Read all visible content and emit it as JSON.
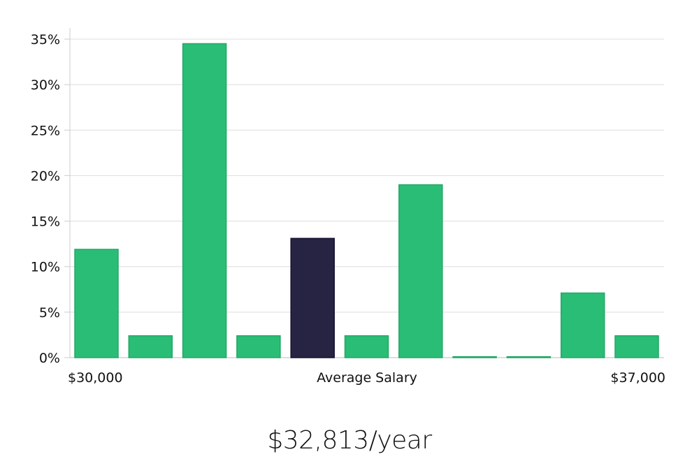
{
  "chart_data": {
    "type": "bar",
    "title": "",
    "xlabel": "Average Salary",
    "ylabel": "",
    "x_range_labels": [
      "$30,000",
      "$37,000"
    ],
    "ylim": [
      0,
      35
    ],
    "yticks": [
      0,
      5,
      10,
      15,
      20,
      25,
      30,
      35
    ],
    "ytick_labels": [
      "0%",
      "5%",
      "10%",
      "15%",
      "20%",
      "25%",
      "30%",
      "35%"
    ],
    "values": [
      11.9,
      2.4,
      34.5,
      2.4,
      13.1,
      2.4,
      19.0,
      0.1,
      0.1,
      7.1,
      2.4
    ],
    "highlight_index": 4,
    "grid": true,
    "colors": {
      "bar": "#2abd76",
      "highlight": "#272343",
      "grid": "#dddddd",
      "axis": "#cccccc"
    }
  },
  "summary": {
    "salary_text": "$32,813/year"
  }
}
